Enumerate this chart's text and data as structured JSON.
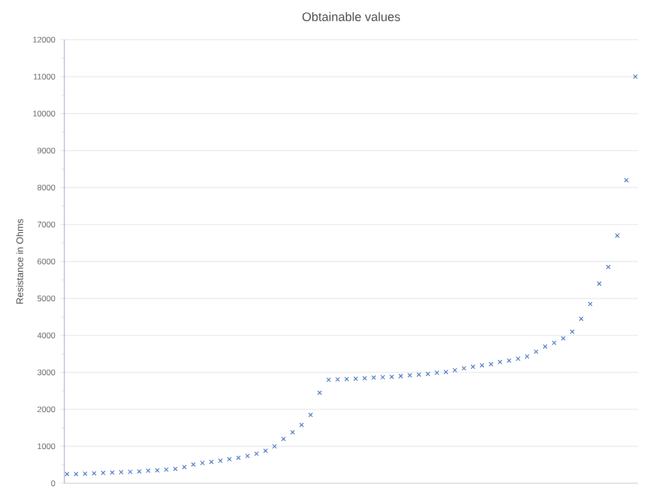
{
  "chart_data": {
    "type": "scatter",
    "title": "Obtainable values",
    "ylabel": "Resistance in Ohms",
    "categories": [
      null,
      null,
      null,
      null,
      null,
      null,
      null,
      null,
      null,
      null,
      null,
      null,
      null,
      null,
      null,
      null,
      null,
      null,
      null,
      null,
      null,
      null,
      null,
      null,
      null,
      null,
      null,
      null,
      null,
      null,
      null,
      null,
      null,
      null,
      null,
      null,
      null,
      null,
      null,
      null,
      null,
      null,
      null,
      null,
      null,
      null,
      null,
      null,
      null,
      null,
      null,
      null,
      null,
      null,
      null,
      null,
      null,
      null,
      null,
      null,
      null,
      null,
      null,
      null
    ],
    "series": [
      {
        "color": "#4472c4",
        "values": [
          250,
          250,
          260,
          270,
          280,
          290,
          300,
          310,
          320,
          340,
          350,
          370,
          390,
          440,
          510,
          550,
          580,
          610,
          650,
          690,
          740,
          800,
          880,
          1000,
          1200,
          1380,
          1580,
          1850,
          2450,
          2800,
          2810,
          2820,
          2830,
          2840,
          2860,
          2870,
          2880,
          2900,
          2920,
          2940,
          2960,
          2990,
          3010,
          3060,
          3110,
          3150,
          3190,
          3220,
          3280,
          3320,
          3370,
          3430,
          3560,
          3700,
          3800,
          3920,
          4100,
          4450,
          4850,
          5400,
          5850,
          6700,
          8200,
          11000
        ]
      }
    ],
    "ylim": [
      0,
      12000
    ],
    "yticks": [
      0,
      1000,
      2000,
      3000,
      4000,
      5000,
      6000,
      7000,
      8000,
      9000,
      10000,
      11000,
      12000
    ],
    "grid": "y",
    "marker": "cross",
    "tick_labels": "y"
  }
}
